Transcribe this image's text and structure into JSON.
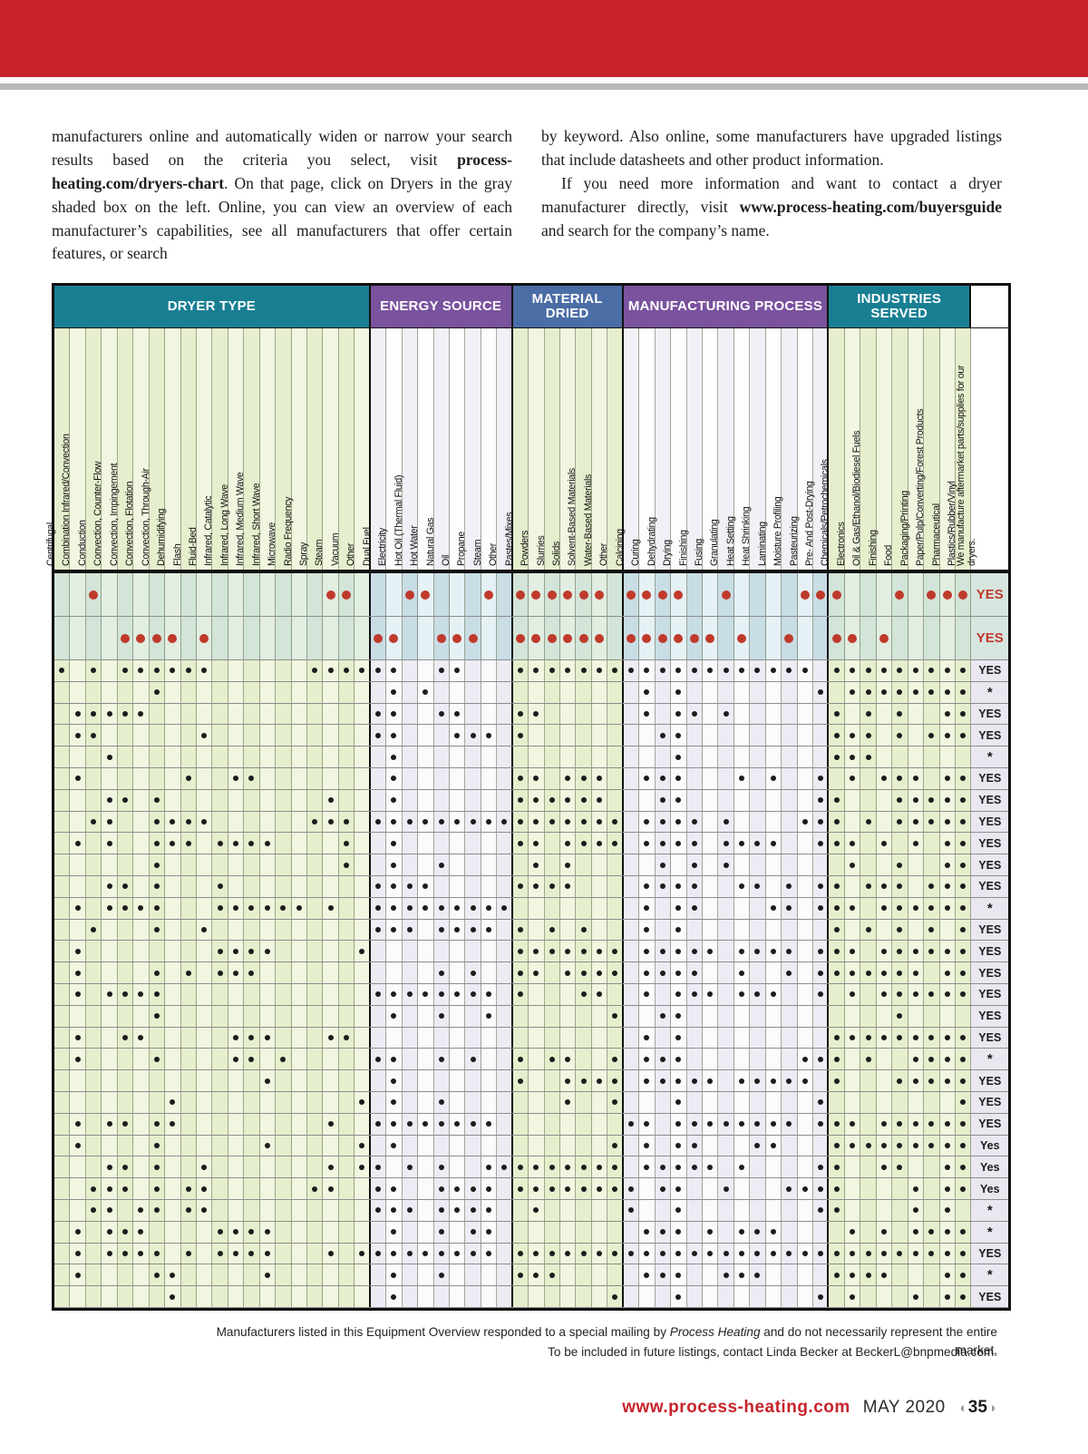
{
  "article": {
    "col1_seg1": "manufacturers online and automatically widen or narrow your search results based on the criteria you select, visit ",
    "col1_bold": "process-heating.com/dryers-chart",
    "col1_seg2": ". On that page, click on Dryers in the gray shaded box on the left. Online, you can view an overview of each manufacturer’s capabilities, see all manufacturers that offer certain features, or search",
    "col2_para1": "by keyword. Also online, some manufacturers have upgraded listings that include datasheets and other product information.",
    "col2_para2_pre": "If you need more information and want to contact a dryer manufacturer directly, visit ",
    "col2_bold": "www.process-heating.com/buyersguide",
    "col2_para2_post": " and search for the company’s name."
  },
  "table": {
    "groups": [
      {
        "label": "DRYER TYPE",
        "color": "#187f93",
        "count": 20,
        "tone": "g"
      },
      {
        "label": "ENERGY SOURCE",
        "color": "#7a529e",
        "count": 9,
        "tone": "l"
      },
      {
        "label": "MATERIAL DRIED",
        "color": "#4a6da6",
        "count": 7,
        "tone": "g"
      },
      {
        "label": "MANUFACTURING PROCESS",
        "color": "#7a529e",
        "count": 13,
        "tone": "l"
      },
      {
        "label": "INDUSTRIES SERVED",
        "color": "#187f93",
        "count": 9,
        "tone": "g"
      }
    ],
    "columns": [
      "Centrifugal",
      "Combination Infrared/Convection",
      "Conduction",
      "Convection, Counter-Flow",
      "Convection, Impingement",
      "Convection, Flotation",
      "Convection, Through-Air",
      "Dehumidifying",
      "Flash",
      "Fluid-Bed",
      "Infrared, Catalytic",
      "Infrared, Long Wave",
      "Infrared, Medium Wave",
      "Infrared, Short Wave",
      "Microwave",
      "Radio Frequency",
      "Spray",
      "Steam",
      "Vacuum",
      "Other",
      "Dual Fuel",
      "Electricity",
      "Hot Oil (Thermal Fluid)",
      "Hot Water",
      "Natural Gas",
      "Oil",
      "Propane",
      "Steam",
      "Other",
      "Pastes/Mixes",
      "Powders",
      "Slurries",
      "Solids",
      "Solvent-Based Materials",
      "Water-Based Materials",
      "Other",
      "Calcining",
      "Curing",
      "Dehydrating",
      "Drying",
      "Finishing",
      "Fusing",
      "Granulating",
      "Heat Setting",
      "Heat Shrinking",
      "Laminating",
      "Moisture Profiling",
      "Pasteurizing",
      "Pre- And Post-Drying",
      "Chemicals/Petrochemicals",
      "Electronics",
      "Oil & Gas/Ethanol/Biodiesel Fuels",
      "Finishing",
      "Food",
      "Packaging/Printing",
      "Paper/Pulp/Converting/Forest Products",
      "Pharmaceutical",
      "Plastics/Rubber/Vinyl"
    ],
    "flag_col_label": "We manufacture aftermarket parts/supplies for our dryers.",
    "rows": [
      {
        "flag": "YES",
        "featured": true,
        "dots": [
          2,
          17,
          18,
          22,
          23,
          27,
          29,
          30,
          31,
          32,
          33,
          34,
          36,
          37,
          38,
          39,
          42,
          47,
          48,
          49,
          53,
          55,
          56,
          57
        ]
      },
      {
        "flag": "YES",
        "featured": true,
        "dots": [
          4,
          5,
          6,
          7,
          9,
          20,
          21,
          24,
          25,
          26,
          29,
          30,
          31,
          32,
          33,
          34,
          36,
          37,
          38,
          39,
          40,
          41,
          43,
          46,
          49,
          50,
          52
        ]
      },
      {
        "flag": "YES",
        "featured": false,
        "dots": [
          0,
          2,
          4,
          5,
          6,
          7,
          8,
          9,
          16,
          17,
          18,
          19,
          20,
          21,
          24,
          25,
          29,
          30,
          31,
          32,
          33,
          34,
          35,
          36,
          37,
          38,
          39,
          40,
          41,
          42,
          43,
          44,
          45,
          46,
          47,
          49,
          50,
          51,
          52,
          53,
          54,
          55,
          56,
          57
        ]
      },
      {
        "flag": "*",
        "featured": false,
        "dots": [
          6,
          21,
          23,
          37,
          39,
          48,
          50,
          51,
          52,
          53,
          54,
          55,
          56,
          57
        ]
      },
      {
        "flag": "YES",
        "featured": false,
        "dots": [
          1,
          2,
          3,
          4,
          5,
          20,
          21,
          24,
          25,
          29,
          30,
          37,
          39,
          40,
          42,
          49,
          51,
          53,
          56,
          57
        ]
      },
      {
        "flag": "YES",
        "featured": false,
        "dots": [
          1,
          2,
          9,
          20,
          21,
          25,
          26,
          27,
          29,
          38,
          39,
          49,
          50,
          51,
          53,
          55,
          56,
          57
        ]
      },
      {
        "flag": "*",
        "featured": false,
        "dots": [
          3,
          21,
          39,
          49,
          50,
          51
        ]
      },
      {
        "flag": "YES",
        "featured": false,
        "dots": [
          1,
          8,
          11,
          12,
          21,
          29,
          30,
          32,
          33,
          34,
          37,
          38,
          39,
          43,
          45,
          48,
          50,
          52,
          53,
          54,
          56,
          57
        ]
      },
      {
        "flag": "YES",
        "featured": false,
        "dots": [
          3,
          4,
          6,
          17,
          21,
          29,
          30,
          31,
          32,
          33,
          34,
          38,
          39,
          48,
          49,
          53,
          54,
          55,
          56,
          57
        ]
      },
      {
        "flag": "YES",
        "featured": false,
        "dots": [
          2,
          3,
          6,
          7,
          8,
          9,
          16,
          17,
          18,
          20,
          21,
          22,
          23,
          24,
          25,
          26,
          27,
          28,
          29,
          30,
          31,
          32,
          33,
          34,
          35,
          37,
          38,
          39,
          40,
          42,
          47,
          48,
          49,
          51,
          53,
          54,
          55,
          56,
          57
        ]
      },
      {
        "flag": "YES",
        "featured": false,
        "dots": [
          1,
          3,
          6,
          7,
          8,
          10,
          11,
          12,
          13,
          18,
          21,
          29,
          30,
          32,
          33,
          34,
          35,
          37,
          38,
          39,
          40,
          42,
          43,
          44,
          45,
          48,
          49,
          50,
          52,
          54,
          56,
          57
        ]
      },
      {
        "flag": "YES",
        "featured": false,
        "dots": [
          6,
          18,
          21,
          24,
          30,
          32,
          38,
          40,
          42,
          50,
          53,
          56,
          57
        ]
      },
      {
        "flag": "YES",
        "featured": false,
        "dots": [
          3,
          4,
          6,
          10,
          20,
          21,
          22,
          23,
          29,
          30,
          31,
          32,
          37,
          38,
          39,
          40,
          43,
          44,
          46,
          48,
          49,
          51,
          52,
          53,
          55,
          56,
          57
        ]
      },
      {
        "flag": "*",
        "featured": false,
        "dots": [
          1,
          3,
          4,
          5,
          6,
          10,
          11,
          12,
          13,
          14,
          15,
          17,
          20,
          21,
          22,
          23,
          24,
          25,
          26,
          27,
          28,
          37,
          39,
          40,
          45,
          46,
          48,
          49,
          50,
          52,
          53,
          54,
          55,
          56,
          57
        ]
      },
      {
        "flag": "YES",
        "featured": false,
        "dots": [
          2,
          6,
          9,
          20,
          21,
          22,
          24,
          25,
          26,
          27,
          29,
          31,
          33,
          37,
          39,
          49,
          51,
          53,
          55,
          57
        ]
      },
      {
        "flag": "YES",
        "featured": false,
        "dots": [
          1,
          10,
          11,
          12,
          13,
          19,
          29,
          30,
          31,
          32,
          33,
          34,
          35,
          37,
          38,
          39,
          40,
          41,
          43,
          44,
          45,
          46,
          48,
          49,
          50,
          52,
          53,
          54,
          55,
          56,
          57
        ]
      },
      {
        "flag": "YES",
        "featured": false,
        "dots": [
          1,
          6,
          8,
          10,
          11,
          12,
          24,
          26,
          29,
          30,
          32,
          33,
          34,
          35,
          37,
          38,
          39,
          40,
          43,
          46,
          48,
          49,
          50,
          51,
          52,
          53,
          54,
          56,
          57
        ]
      },
      {
        "flag": "YES",
        "featured": false,
        "dots": [
          1,
          3,
          4,
          5,
          6,
          20,
          21,
          22,
          23,
          24,
          25,
          26,
          27,
          29,
          33,
          34,
          37,
          39,
          40,
          41,
          43,
          44,
          45,
          48,
          50,
          52,
          53,
          54,
          55,
          56,
          57
        ]
      },
      {
        "flag": "YES",
        "featured": false,
        "dots": [
          6,
          21,
          24,
          27,
          35,
          38,
          39,
          53
        ]
      },
      {
        "flag": "YES",
        "featured": false,
        "dots": [
          1,
          4,
          5,
          11,
          12,
          13,
          17,
          18,
          37,
          39,
          49,
          50,
          51,
          52,
          53,
          54,
          55,
          56,
          57
        ]
      },
      {
        "flag": "*",
        "featured": false,
        "dots": [
          1,
          6,
          11,
          12,
          14,
          20,
          21,
          24,
          26,
          29,
          31,
          32,
          35,
          37,
          38,
          39,
          47,
          48,
          49,
          51,
          54,
          55,
          56,
          57
        ]
      },
      {
        "flag": "YES",
        "featured": false,
        "dots": [
          13,
          21,
          29,
          32,
          33,
          34,
          35,
          37,
          38,
          39,
          40,
          41,
          43,
          44,
          45,
          46,
          47,
          49,
          53,
          54,
          55,
          56,
          57
        ]
      },
      {
        "flag": "YES",
        "featured": false,
        "dots": [
          7,
          19,
          21,
          24,
          32,
          35,
          39,
          48,
          57
        ]
      },
      {
        "flag": "YES",
        "featured": false,
        "dots": [
          1,
          3,
          4,
          6,
          7,
          17,
          20,
          21,
          22,
          23,
          24,
          25,
          26,
          27,
          36,
          37,
          39,
          40,
          41,
          42,
          43,
          44,
          45,
          46,
          48,
          49,
          50,
          52,
          53,
          54,
          55,
          56,
          57
        ]
      },
      {
        "flag": "Yes",
        "featured": false,
        "dots": [
          1,
          6,
          13,
          19,
          21,
          35,
          37,
          39,
          40,
          44,
          45,
          49,
          50,
          51,
          52,
          53,
          54,
          55,
          56,
          57
        ]
      },
      {
        "flag": "Yes",
        "featured": false,
        "dots": [
          3,
          4,
          6,
          9,
          17,
          19,
          20,
          22,
          24,
          27,
          28,
          29,
          30,
          31,
          32,
          33,
          34,
          35,
          37,
          38,
          39,
          40,
          41,
          43,
          48,
          49,
          52,
          53,
          56,
          57
        ]
      },
      {
        "flag": "Yes",
        "featured": false,
        "dots": [
          2,
          3,
          4,
          6,
          8,
          9,
          16,
          17,
          20,
          21,
          24,
          25,
          26,
          27,
          29,
          30,
          31,
          32,
          33,
          34,
          35,
          36,
          38,
          39,
          42,
          46,
          47,
          48,
          49,
          54,
          56,
          57
        ]
      },
      {
        "flag": "*",
        "featured": false,
        "dots": [
          2,
          3,
          5,
          6,
          8,
          9,
          20,
          21,
          22,
          24,
          25,
          26,
          27,
          30,
          36,
          39,
          48,
          49,
          54,
          56
        ]
      },
      {
        "flag": "*",
        "featured": false,
        "dots": [
          1,
          3,
          4,
          5,
          10,
          11,
          12,
          13,
          21,
          24,
          26,
          27,
          37,
          38,
          39,
          41,
          43,
          44,
          45,
          50,
          52,
          54,
          55,
          56,
          57
        ]
      },
      {
        "flag": "YES",
        "featured": false,
        "dots": [
          1,
          3,
          4,
          5,
          6,
          8,
          10,
          11,
          12,
          13,
          17,
          19,
          20,
          21,
          22,
          23,
          24,
          25,
          26,
          27,
          29,
          30,
          31,
          32,
          33,
          34,
          35,
          36,
          37,
          38,
          39,
          40,
          41,
          42,
          43,
          44,
          45,
          46,
          47,
          48,
          49,
          50,
          51,
          52,
          53,
          54,
          55,
          56,
          57
        ]
      },
      {
        "flag": "*",
        "featured": false,
        "dots": [
          1,
          6,
          7,
          13,
          21,
          24,
          29,
          30,
          31,
          37,
          38,
          39,
          42,
          43,
          44,
          49,
          50,
          51,
          52,
          56,
          57
        ]
      },
      {
        "flag": "YES",
        "featured": false,
        "dots": [
          7,
          21,
          35,
          39,
          48,
          50,
          54,
          56,
          57
        ]
      }
    ]
  },
  "footnote": {
    "line1_pre": "Manufacturers listed in this Equipment Overview responded to a special mailing by ",
    "line1_it": "Process Heating",
    "line1_post": " and do not necessarily represent the entire market.",
    "line2": "To be included in future listings, contact Linda Becker at BeckerL@bnpmedia.com."
  },
  "bottom": {
    "url": "www.process-heating.com",
    "issue": "MAY 2020",
    "page": "35"
  }
}
